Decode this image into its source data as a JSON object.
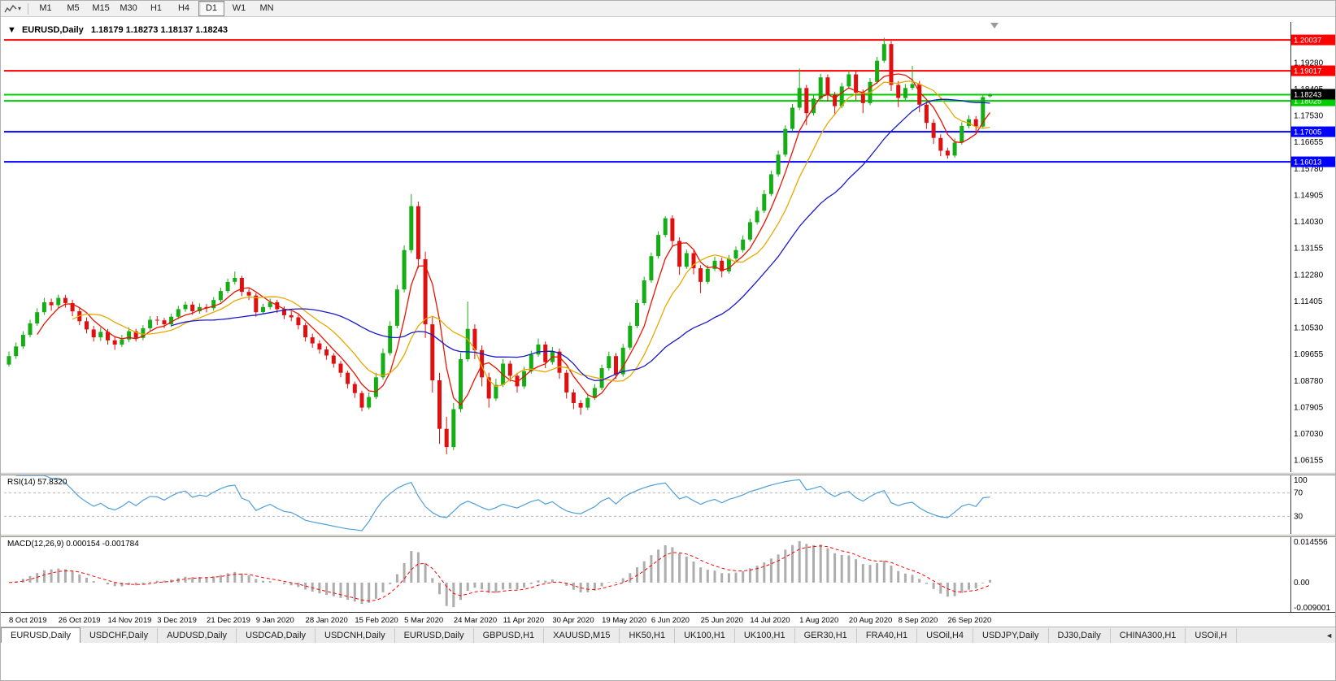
{
  "toolbar": {
    "timeframes": [
      "M1",
      "M5",
      "M15",
      "M30",
      "H1",
      "H4",
      "D1",
      "W1",
      "MN"
    ],
    "active_timeframe": "D1"
  },
  "chart": {
    "collapse_arrow": "▼",
    "title_symbol": "EURUSD,Daily",
    "ohlc_text": "1.18179 1.18273 1.18137 1.18243"
  },
  "chart_data": {
    "type": "candlestick",
    "title": "EURUSD,Daily",
    "symbol": "EURUSD",
    "timeframe": "Daily",
    "ylim": [
      1.0577,
      1.2063
    ],
    "colors": {
      "up": "#14ad14",
      "down": "#e01010"
    },
    "y_axis_labels": [
      "1.19280",
      "1.18405",
      "1.17530",
      "1.16655",
      "1.15780",
      "1.14905",
      "1.14030",
      "1.13155",
      "1.12280",
      "1.11405",
      "1.10530",
      "1.09655",
      "1.08780",
      "1.07905",
      "1.07030",
      "1.06155"
    ],
    "hlines": [
      {
        "price": 1.20037,
        "label": "1.20037",
        "color": "#ff0000"
      },
      {
        "price": 1.19017,
        "label": "1.19017",
        "color": "#ff0000"
      },
      {
        "price": 1.1823,
        "label": "",
        "color": "#00cc00"
      },
      {
        "price": 1.18025,
        "label": "1.18025",
        "color": "#00cc00"
      },
      {
        "price": 1.17005,
        "label": "1.17005",
        "color": "#0000ff"
      },
      {
        "price": 1.16013,
        "label": "1.16013",
        "color": "#0000ff"
      }
    ],
    "current_price": {
      "value": 1.18243,
      "label": "1.18243",
      "badge_color": "#000000"
    },
    "moving_averages": [
      {
        "period": 5,
        "color": "#e81400"
      },
      {
        "period": 10,
        "color": "#e8a800"
      },
      {
        "period": 24,
        "color": "#1a1acc"
      }
    ],
    "label_every": 7,
    "x_labels": [
      "8 Oct 2019",
      "26 Oct 2019",
      "14 Nov 2019",
      "3 Dec 2019",
      "21 Dec 2019",
      "9 Jan 2020",
      "28 Jan 2020",
      "15 Feb 2020",
      "5 Mar 2020",
      "24 Mar 2020",
      "11 Apr 2020",
      "30 Apr 2020",
      "19 May 2020",
      "6 Jun 2020",
      "25 Jun 2020",
      "14 Jul 2020",
      "1 Aug 2020",
      "20 Aug 2020",
      "8 Sep 2020",
      "26 Sep 2020"
    ],
    "candles": [
      [
        1.0932,
        1.0975,
        1.0925,
        1.096
      ],
      [
        1.096,
        1.1005,
        1.0951,
        1.0992
      ],
      [
        1.0992,
        1.1042,
        1.0984,
        1.103
      ],
      [
        1.103,
        1.108,
        1.1022,
        1.1068
      ],
      [
        1.1068,
        1.1118,
        1.106,
        1.1105
      ],
      [
        1.1105,
        1.1152,
        1.1096,
        1.1138
      ],
      [
        1.1138,
        1.115,
        1.111,
        1.1128
      ],
      [
        1.1128,
        1.1163,
        1.1118,
        1.1152
      ],
      [
        1.1152,
        1.1162,
        1.112,
        1.1135
      ],
      [
        1.1135,
        1.1146,
        1.1092,
        1.1108
      ],
      [
        1.1108,
        1.1118,
        1.1062,
        1.1075
      ],
      [
        1.1075,
        1.1088,
        1.1035,
        1.1048
      ],
      [
        1.1048,
        1.106,
        1.1008,
        1.1022
      ],
      [
        1.1022,
        1.1055,
        1.101,
        1.104
      ],
      [
        1.104,
        1.105,
        1.0998,
        1.1012
      ],
      [
        1.1012,
        1.1025,
        1.0981,
        1.0998
      ],
      [
        1.0998,
        1.103,
        1.099,
        1.1015
      ],
      [
        1.1015,
        1.1055,
        1.1006,
        1.1042
      ],
      [
        1.1042,
        1.105,
        1.1008,
        1.102
      ],
      [
        1.102,
        1.1062,
        1.1012,
        1.1052
      ],
      [
        1.1052,
        1.1092,
        1.1044,
        1.108
      ],
      [
        1.108,
        1.1092,
        1.1062,
        1.1078
      ],
      [
        1.1078,
        1.1086,
        1.1052,
        1.1065
      ],
      [
        1.1065,
        1.11,
        1.1056,
        1.109
      ],
      [
        1.109,
        1.1126,
        1.1082,
        1.1115
      ],
      [
        1.1115,
        1.114,
        1.1106,
        1.113
      ],
      [
        1.113,
        1.114,
        1.1096,
        1.1108
      ],
      [
        1.1108,
        1.1134,
        1.11,
        1.1122
      ],
      [
        1.1122,
        1.1132,
        1.1104,
        1.1118
      ],
      [
        1.1118,
        1.1155,
        1.111,
        1.1145
      ],
      [
        1.1145,
        1.1186,
        1.1138,
        1.1175
      ],
      [
        1.1175,
        1.1216,
        1.1168,
        1.1205
      ],
      [
        1.1205,
        1.1239,
        1.1196,
        1.1218
      ],
      [
        1.1218,
        1.1225,
        1.1158,
        1.1172
      ],
      [
        1.1172,
        1.1184,
        1.1145,
        1.116
      ],
      [
        1.116,
        1.1168,
        1.109,
        1.1105
      ],
      [
        1.1105,
        1.1133,
        1.1098,
        1.1122
      ],
      [
        1.1122,
        1.115,
        1.1114,
        1.1138
      ],
      [
        1.1138,
        1.1146,
        1.1102,
        1.1115
      ],
      [
        1.1115,
        1.1124,
        1.1082,
        1.1095
      ],
      [
        1.1095,
        1.1108,
        1.1075,
        1.1088
      ],
      [
        1.1088,
        1.1096,
        1.1048,
        1.1062
      ],
      [
        1.1062,
        1.107,
        1.1008,
        1.1022
      ],
      [
        1.1022,
        1.1034,
        1.0988,
        1.1002
      ],
      [
        1.1002,
        1.1012,
        1.0968,
        1.0982
      ],
      [
        1.0982,
        1.0992,
        1.0948,
        1.0962
      ],
      [
        1.0962,
        1.097,
        1.0922,
        1.0935
      ],
      [
        1.0935,
        1.0944,
        1.089,
        1.0905
      ],
      [
        1.0905,
        1.0912,
        1.0853,
        1.0868
      ],
      [
        1.0868,
        1.0876,
        1.0822,
        1.0838
      ],
      [
        1.0838,
        1.0846,
        1.0778,
        1.079
      ],
      [
        1.079,
        1.084,
        1.0784,
        1.0825
      ],
      [
        1.0825,
        1.0905,
        1.0818,
        1.089
      ],
      [
        1.089,
        1.0985,
        1.0882,
        1.097
      ],
      [
        1.097,
        1.1075,
        1.0962,
        1.106
      ],
      [
        1.106,
        1.1195,
        1.1052,
        1.118
      ],
      [
        1.118,
        1.1325,
        1.117,
        1.131
      ],
      [
        1.131,
        1.1495,
        1.13,
        1.1455
      ],
      [
        1.1455,
        1.147,
        1.125,
        1.128
      ],
      [
        1.128,
        1.1305,
        1.102,
        1.1065
      ],
      [
        1.1065,
        1.109,
        1.084,
        1.088
      ],
      [
        1.088,
        1.0905,
        1.067,
        1.072
      ],
      [
        1.072,
        1.076,
        1.0636,
        1.066
      ],
      [
        1.066,
        1.0805,
        1.065,
        1.0785
      ],
      [
        1.0785,
        1.097,
        1.0775,
        1.095
      ],
      [
        1.095,
        1.114,
        1.0942,
        1.105
      ],
      [
        1.105,
        1.1065,
        1.095,
        1.098
      ],
      [
        1.098,
        1.0995,
        1.086,
        1.089
      ],
      [
        1.089,
        1.0905,
        1.079,
        1.082
      ],
      [
        1.082,
        1.0885,
        1.0812,
        1.0865
      ],
      [
        1.0865,
        1.095,
        1.0858,
        1.0935
      ],
      [
        1.0935,
        1.0945,
        1.0876,
        1.0895
      ],
      [
        1.0895,
        1.0905,
        1.084,
        1.086
      ],
      [
        1.086,
        1.0925,
        1.0852,
        1.091
      ],
      [
        1.091,
        1.0978,
        1.0902,
        1.0965
      ],
      [
        1.0965,
        1.1018,
        1.0958,
        1.0998
      ],
      [
        1.0998,
        1.1008,
        1.092,
        1.094
      ],
      [
        1.094,
        1.099,
        1.0932,
        1.0975
      ],
      [
        1.0975,
        1.0985,
        1.0885,
        1.0905
      ],
      [
        1.0905,
        1.0915,
        1.082,
        1.084
      ],
      [
        1.084,
        1.085,
        1.0785,
        1.0805
      ],
      [
        1.0805,
        1.0815,
        1.0766,
        1.079
      ],
      [
        1.079,
        1.0835,
        1.0782,
        1.0822
      ],
      [
        1.0822,
        1.0868,
        1.0815,
        1.0855
      ],
      [
        1.0855,
        1.0932,
        1.0848,
        1.092
      ],
      [
        1.092,
        1.0975,
        1.0912,
        1.096
      ],
      [
        1.096,
        1.097,
        1.0885,
        1.09
      ],
      [
        1.09,
        1.1,
        1.0892,
        1.0988
      ],
      [
        1.0988,
        1.1072,
        1.098,
        1.106
      ],
      [
        1.106,
        1.1147,
        1.1052,
        1.1135
      ],
      [
        1.1135,
        1.1222,
        1.1128,
        1.121
      ],
      [
        1.121,
        1.1302,
        1.1202,
        1.129
      ],
      [
        1.129,
        1.1372,
        1.1282,
        1.136
      ],
      [
        1.136,
        1.1422,
        1.1352,
        1.1415
      ],
      [
        1.1415,
        1.1425,
        1.132,
        1.134
      ],
      [
        1.134,
        1.1352,
        1.1228,
        1.1255
      ],
      [
        1.1255,
        1.1312,
        1.1248,
        1.13
      ],
      [
        1.13,
        1.131,
        1.123,
        1.125
      ],
      [
        1.125,
        1.126,
        1.1168,
        1.1205
      ],
      [
        1.1205,
        1.126,
        1.1198,
        1.1248
      ],
      [
        1.1248,
        1.1288,
        1.124,
        1.1275
      ],
      [
        1.1275,
        1.1285,
        1.122,
        1.124
      ],
      [
        1.124,
        1.1294,
        1.1232,
        1.1282
      ],
      [
        1.1282,
        1.1322,
        1.1274,
        1.131
      ],
      [
        1.131,
        1.1358,
        1.1302,
        1.1345
      ],
      [
        1.1345,
        1.1414,
        1.1338,
        1.1402
      ],
      [
        1.1402,
        1.1452,
        1.1394,
        1.144
      ],
      [
        1.144,
        1.1508,
        1.1432,
        1.1495
      ],
      [
        1.1495,
        1.1572,
        1.1488,
        1.156
      ],
      [
        1.156,
        1.1638,
        1.1552,
        1.1625
      ],
      [
        1.1625,
        1.1722,
        1.1618,
        1.171
      ],
      [
        1.171,
        1.1792,
        1.1702,
        1.178
      ],
      [
        1.178,
        1.1909,
        1.1772,
        1.1845
      ],
      [
        1.1845,
        1.1855,
        1.1722,
        1.1762
      ],
      [
        1.1762,
        1.1822,
        1.1754,
        1.181
      ],
      [
        1.181,
        1.1892,
        1.1802,
        1.188
      ],
      [
        1.188,
        1.189,
        1.18,
        1.1822
      ],
      [
        1.1822,
        1.1832,
        1.1755,
        1.1785
      ],
      [
        1.1785,
        1.1862,
        1.1778,
        1.185
      ],
      [
        1.185,
        1.1902,
        1.1842,
        1.189
      ],
      [
        1.189,
        1.19,
        1.1805,
        1.183
      ],
      [
        1.183,
        1.184,
        1.1762,
        1.1795
      ],
      [
        1.1795,
        1.1878,
        1.1788,
        1.1865
      ],
      [
        1.1865,
        1.1948,
        1.1858,
        1.1935
      ],
      [
        1.1935,
        1.2011,
        1.1928,
        1.199
      ],
      [
        1.199,
        1.2,
        1.1835,
        1.1855
      ],
      [
        1.1855,
        1.1868,
        1.1782,
        1.1812
      ],
      [
        1.1812,
        1.1858,
        1.1804,
        1.1845
      ],
      [
        1.1845,
        1.1918,
        1.1838,
        1.1858
      ],
      [
        1.1858,
        1.1868,
        1.1765,
        1.179
      ],
      [
        1.179,
        1.18,
        1.171,
        1.173
      ],
      [
        1.173,
        1.1742,
        1.166,
        1.168
      ],
      [
        1.168,
        1.1692,
        1.162,
        1.1638
      ],
      [
        1.1638,
        1.1648,
        1.1612,
        1.1622
      ],
      [
        1.1622,
        1.1678,
        1.1615,
        1.1665
      ],
      [
        1.1665,
        1.1732,
        1.1658,
        1.172
      ],
      [
        1.172,
        1.1755,
        1.1712,
        1.1742
      ],
      [
        1.1742,
        1.1752,
        1.1695,
        1.1718
      ],
      [
        1.1718,
        1.1822,
        1.171,
        1.1815
      ],
      [
        1.18179,
        1.18273,
        1.18137,
        1.18243
      ]
    ],
    "rsi": {
      "label": "RSI(14) 57.8320",
      "period": 7,
      "color": "#4f9fd8",
      "axis_labels": [
        "100",
        "70",
        "30"
      ]
    },
    "macd": {
      "label": "MACD(12,26,9) 0.000154 -0.001784",
      "fast": 6,
      "slow": 13,
      "signal": 5,
      "hist_color": "#adadad",
      "signal_color": "#ff0000",
      "axis_labels": [
        "0.014556",
        "0.00",
        "-0.009001"
      ]
    }
  },
  "tabs": {
    "items": [
      "EURUSD,Daily",
      "USDCHF,Daily",
      "AUDUSD,Daily",
      "USDCAD,Daily",
      "USDCNH,Daily",
      "EURUSD,Daily",
      "GBPUSD,H1",
      "XAUUSD,M15",
      "HK50,H1",
      "UK100,H1",
      "UK100,H1",
      "GER30,H1",
      "FRA40,H1",
      "USOil,H4",
      "USDJPY,Daily",
      "DJ30,Daily",
      "CHINA300,H1",
      "USOil,H"
    ],
    "active_index": 0,
    "scroll_arrow": "◄"
  }
}
